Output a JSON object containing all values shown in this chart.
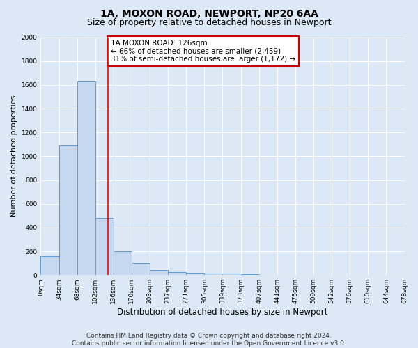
{
  "title1": "1A, MOXON ROAD, NEWPORT, NP20 6AA",
  "title2": "Size of property relative to detached houses in Newport",
  "xlabel": "Distribution of detached houses by size in Newport",
  "ylabel": "Number of detached properties",
  "bar_values": [
    160,
    1090,
    1630,
    480,
    200,
    100,
    40,
    25,
    20,
    15,
    10,
    8,
    0,
    0,
    0,
    0,
    0,
    0,
    0
  ],
  "tick_labels": [
    "0sqm",
    "34sqm",
    "68sqm",
    "102sqm",
    "136sqm",
    "170sqm",
    "203sqm",
    "237sqm",
    "271sqm",
    "305sqm",
    "339sqm",
    "373sqm",
    "407sqm",
    "441sqm",
    "475sqm",
    "509sqm",
    "542sqm",
    "576sqm",
    "610sqm",
    "644sqm",
    "678sqm"
  ],
  "bar_color": "#c5d8f0",
  "bar_edge_color": "#5b9bd5",
  "bg_color": "#dce8f5",
  "grid_color": "#ffffff",
  "vline_bin": 3,
  "vline_color": "red",
  "annotation_text": "1A MOXON ROAD: 126sqm\n← 66% of detached houses are smaller (2,459)\n31% of semi-detached houses are larger (1,172) →",
  "annotation_box_color": "white",
  "annotation_box_edge": "#cc0000",
  "ylim": [
    0,
    2000
  ],
  "yticks": [
    0,
    200,
    400,
    600,
    800,
    1000,
    1200,
    1400,
    1600,
    1800,
    2000
  ],
  "footer_text": "Contains HM Land Registry data © Crown copyright and database right 2024.\nContains public sector information licensed under the Open Government Licence v3.0.",
  "title1_fontsize": 10,
  "title2_fontsize": 9,
  "xlabel_fontsize": 8.5,
  "ylabel_fontsize": 8,
  "tick_fontsize": 6.5,
  "annotation_fontsize": 7.5,
  "footer_fontsize": 6.5
}
